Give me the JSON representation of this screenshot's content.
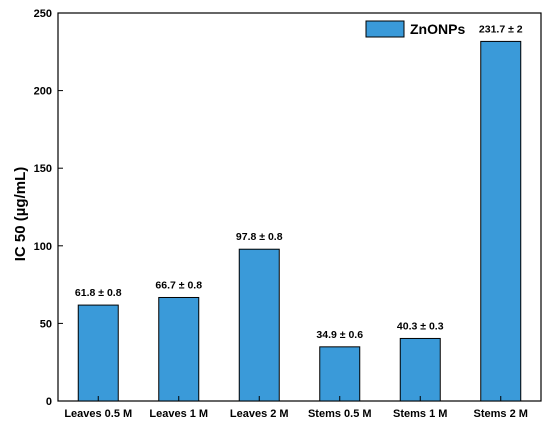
{
  "chart_data": {
    "type": "bar",
    "categories": [
      "Leaves 0.5 M",
      "Leaves 1 M",
      "Leaves 2 M",
      "Stems 0.5 M",
      "Stems 1 M",
      "Stems 2 M"
    ],
    "series": [
      {
        "name": "ZnONPs",
        "values": [
          61.8,
          66.7,
          97.8,
          34.9,
          40.3,
          231.7
        ],
        "labels": [
          "61.8 ± 0.8",
          "66.7 ± 0.8",
          "97.8 ± 0.8",
          "34.9 ± 0.6",
          "40.3 ± 0.3",
          "231.7 ± 2"
        ],
        "color": "#3a9ad9"
      }
    ],
    "title": "",
    "xlabel": "",
    "ylabel": "IC 50 (µg/mL)",
    "ylim": [
      0,
      250
    ],
    "yticks": [
      0,
      50,
      100,
      150,
      200,
      250
    ],
    "grid": false,
    "legend": "top-right"
  }
}
